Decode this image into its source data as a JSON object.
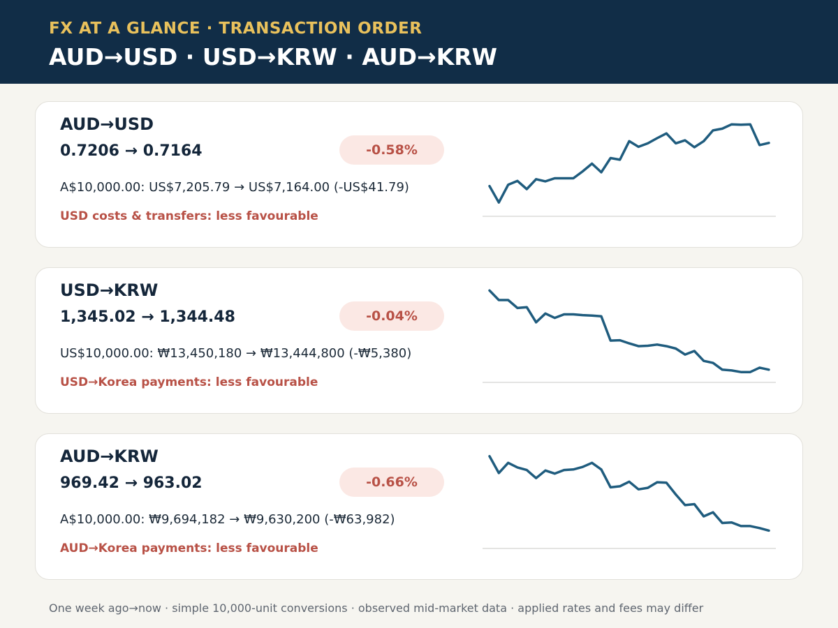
{
  "header": {
    "kicker": "FX AT A GLANCE · TRANSACTION ORDER",
    "title": "AUD→USD · USD→KRW · AUD→KRW"
  },
  "colors": {
    "header_bg": "#112d47",
    "kicker": "#e9c15c",
    "line": "#1f5c7e",
    "negative_text": "#b85146",
    "negative_badge_bg": "#fbe8e4"
  },
  "cards": [
    {
      "pair": "AUD→USD",
      "from_rate": "0.7206",
      "arrow": "→",
      "to_rate": "0.7164",
      "change": "-0.58%",
      "conversion": "A$10,000.00: US$7,205.79 → US$7,164.00 (-US$41.79)",
      "impact": "USD costs & transfers: less favourable"
    },
    {
      "pair": "USD→KRW",
      "from_rate": "1,345.02",
      "arrow": "→",
      "to_rate": "1,344.48",
      "change": "-0.04%",
      "conversion": "US$10,000.00: ₩13,450,180 → ₩13,444,800 (-₩5,380)",
      "impact": "USD→Korea payments: less favourable"
    },
    {
      "pair": "AUD→KRW",
      "from_rate": "969.42",
      "arrow": "→",
      "to_rate": "963.02",
      "change": "-0.66%",
      "conversion": "A$10,000.00: ₩9,694,182 → ₩9,630,200 (-₩63,982)",
      "impact": "AUD→Korea payments: less favourable"
    }
  ],
  "chart_data": [
    {
      "type": "line",
      "values": [
        0.7115,
        0.7077,
        0.7118,
        0.7127,
        0.7108,
        0.7131,
        0.7126,
        0.7133,
        0.7133,
        0.7133,
        0.7149,
        0.7167,
        0.7147,
        0.718,
        0.7176,
        0.7219,
        0.7206,
        0.7214,
        0.7226,
        0.7237,
        0.7214,
        0.7221,
        0.7205,
        0.7219,
        0.7244,
        0.7248,
        0.7258,
        0.7257,
        0.7258,
        0.721,
        0.7215
      ],
      "ylim": [
        0.7045,
        0.7268
      ]
    },
    {
      "type": "line",
      "values": [
        1347.4,
        1347.16,
        1347.16,
        1346.96,
        1346.98,
        1346.6,
        1346.82,
        1346.71,
        1346.8,
        1346.8,
        1346.78,
        1346.77,
        1346.75,
        1346.14,
        1346.15,
        1346.07,
        1346.0,
        1346.01,
        1346.04,
        1346.0,
        1345.94,
        1345.79,
        1345.88,
        1345.63,
        1345.58,
        1345.41,
        1345.39,
        1345.35,
        1345.35,
        1345.46,
        1345.41
      ],
      "ylim": [
        1345.09,
        1347.51
      ]
    },
    {
      "type": "line",
      "values": [
        975.6,
        972.3,
        974.3,
        973.4,
        972.9,
        971.3,
        972.8,
        972.2,
        972.9,
        973.0,
        973.5,
        974.3,
        973.0,
        969.5,
        969.7,
        970.6,
        969.1,
        969.4,
        970.5,
        970.4,
        968.1,
        966.0,
        966.2,
        963.8,
        964.6,
        962.5,
        962.6,
        961.9,
        961.9,
        961.5,
        961.0
      ],
      "ylim": [
        957.5,
        976.4
      ]
    }
  ],
  "footer": "One week ago→now · simple 10,000-unit conversions · observed mid-market data · applied rates and fees may differ"
}
